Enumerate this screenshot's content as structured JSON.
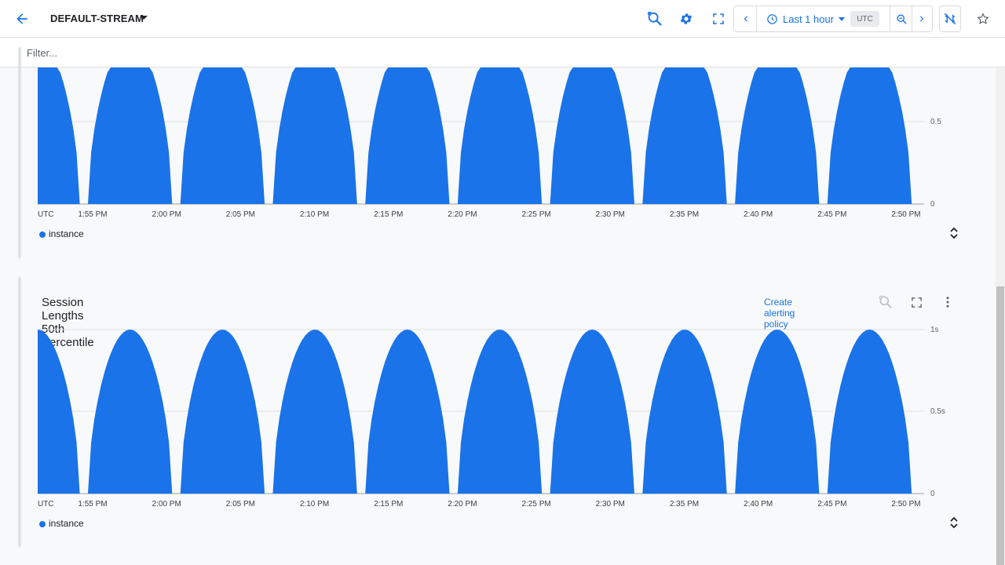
{
  "header": {
    "stream_name": "DEFAULT-STREAM",
    "time_range_label": "Last 1 hour",
    "timezone_badge": "UTC",
    "icons": [
      "back-arrow-icon",
      "reset-zoom-icon",
      "gear-icon",
      "fullscreen-icon",
      "chevron-left-icon",
      "clock-icon",
      "zoom-out-icon",
      "chevron-right-icon",
      "link-off-icon",
      "star-icon"
    ]
  },
  "filter": {
    "placeholder": "Filter..."
  },
  "colors": {
    "accent": "#1a73e8",
    "series": "#1a73e8",
    "grid": "#e0e0e0"
  },
  "charts": [
    {
      "title": "",
      "y_ticks": [
        "0.5",
        "0"
      ],
      "x_ticks": [
        "UTC",
        "1:55 PM",
        "2:00 PM",
        "2:05 PM",
        "2:10 PM",
        "2:15 PM",
        "2:20 PM",
        "2:25 PM",
        "2:30 PM",
        "2:35 PM",
        "2:40 PM",
        "2:45 PM",
        "2:50 PM"
      ],
      "legend": "instance"
    },
    {
      "title": "Session Lengths 50th Percentile",
      "alert_link": "Create alerting policy",
      "y_ticks": [
        "1s",
        "0.5s",
        "0"
      ],
      "x_ticks": [
        "UTC",
        "1:55 PM",
        "2:00 PM",
        "2:05 PM",
        "2:10 PM",
        "2:15 PM",
        "2:20 PM",
        "2:25 PM",
        "2:30 PM",
        "2:35 PM",
        "2:40 PM",
        "2:45 PM",
        "2:50 PM"
      ],
      "legend": "instance"
    }
  ],
  "chart_data": [
    {
      "type": "bar",
      "series": [
        {
          "name": "instance",
          "pattern": "periodic arch",
          "peak": 1,
          "period_minutes": 6.25,
          "first_peak": "1:51 PM"
        }
      ],
      "x_range": [
        "1:50 PM",
        "2:51 PM"
      ],
      "yticks": [
        0,
        0.5
      ],
      "ylim": [
        0,
        1
      ],
      "grid": true
    },
    {
      "type": "bar",
      "series": [
        {
          "name": "instance",
          "pattern": "periodic arch",
          "peak": 1,
          "period_minutes": 6.25,
          "first_peak": "1:51 PM"
        }
      ],
      "x_range": [
        "1:50 PM",
        "2:51 PM"
      ],
      "yticks": [
        "0",
        "0.5s",
        "1s"
      ],
      "ylim": [
        0,
        1
      ],
      "grid": true
    }
  ]
}
